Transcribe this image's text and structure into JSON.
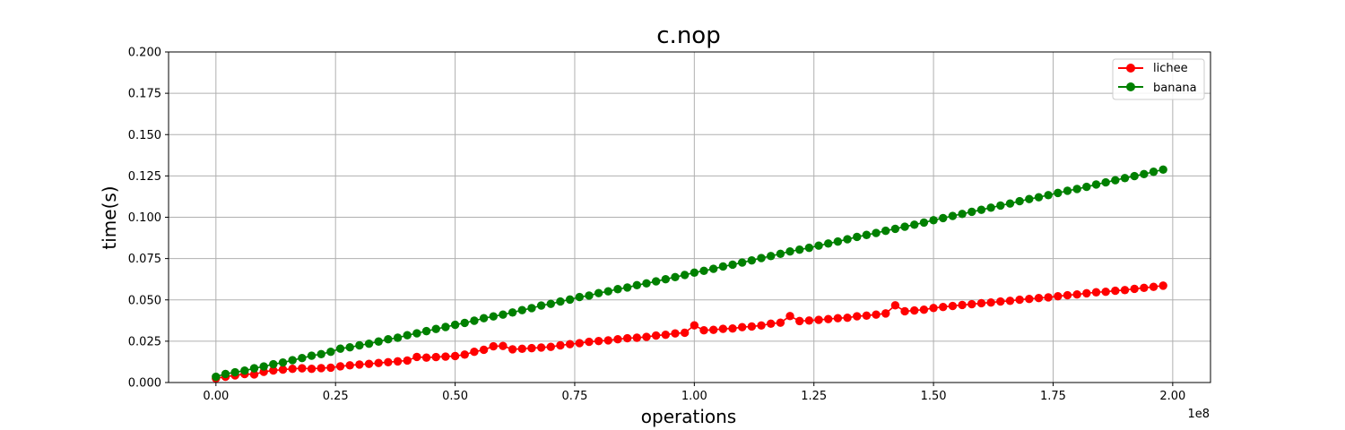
{
  "chart_data": {
    "type": "line",
    "title": "c.nop",
    "xlabel": "operations",
    "ylabel": "time(s)",
    "x_offset_label": "1e8",
    "xlim": [
      -0.099,
      2.079
    ],
    "ylim": [
      0,
      0.2
    ],
    "x_ticks": [
      0,
      0.25,
      0.5,
      0.75,
      1.0,
      1.25,
      1.5,
      1.75,
      2.0
    ],
    "x_tick_labels": [
      "0.00",
      "0.25",
      "0.50",
      "0.75",
      "1.00",
      "1.25",
      "1.50",
      "1.75",
      "2.00"
    ],
    "y_ticks": [
      0,
      0.025,
      0.05,
      0.075,
      0.1,
      0.125,
      0.15,
      0.175,
      0.2
    ],
    "y_tick_labels": [
      "0.000",
      "0.025",
      "0.050",
      "0.075",
      "0.100",
      "0.125",
      "0.150",
      "0.175",
      "0.200"
    ],
    "grid": true,
    "legend_position": "top-right",
    "x": [
      0.0,
      0.02,
      0.04,
      0.06,
      0.08,
      0.1,
      0.12,
      0.14,
      0.16,
      0.18,
      0.2,
      0.22,
      0.24,
      0.26,
      0.28,
      0.3,
      0.32,
      0.34,
      0.36,
      0.38,
      0.4,
      0.42,
      0.44,
      0.46,
      0.48,
      0.5,
      0.52,
      0.54,
      0.56,
      0.58,
      0.6,
      0.62,
      0.64,
      0.66,
      0.68,
      0.7,
      0.72,
      0.74,
      0.76,
      0.78,
      0.8,
      0.82,
      0.84,
      0.86,
      0.88,
      0.9,
      0.92,
      0.94,
      0.96,
      0.98,
      1.0,
      1.02,
      1.04,
      1.06,
      1.08,
      1.1,
      1.12,
      1.14,
      1.16,
      1.18,
      1.2,
      1.22,
      1.24,
      1.26,
      1.28,
      1.3,
      1.32,
      1.34,
      1.36,
      1.38,
      1.4,
      1.42,
      1.44,
      1.46,
      1.48,
      1.5,
      1.52,
      1.54,
      1.56,
      1.58,
      1.6,
      1.62,
      1.64,
      1.66,
      1.68,
      1.7,
      1.72,
      1.74,
      1.76,
      1.78,
      1.8,
      1.82,
      1.84,
      1.86,
      1.88,
      1.9,
      1.92,
      1.94,
      1.96,
      1.98
    ],
    "series": [
      {
        "name": "lichee",
        "color": "#ff0000",
        "values": [
          0.0025,
          0.0035,
          0.0043,
          0.0051,
          0.0049,
          0.0065,
          0.0073,
          0.0078,
          0.0083,
          0.0086,
          0.0083,
          0.0087,
          0.009,
          0.0098,
          0.0104,
          0.0109,
          0.0113,
          0.0118,
          0.0123,
          0.0128,
          0.0133,
          0.0155,
          0.0151,
          0.0154,
          0.0157,
          0.016,
          0.0169,
          0.0186,
          0.0198,
          0.0219,
          0.0221,
          0.0201,
          0.0204,
          0.0208,
          0.0212,
          0.0216,
          0.0225,
          0.0232,
          0.0238,
          0.0246,
          0.0251,
          0.0255,
          0.0262,
          0.0268,
          0.0271,
          0.0276,
          0.0284,
          0.0289,
          0.0297,
          0.0301,
          0.0346,
          0.0316,
          0.0319,
          0.0325,
          0.0327,
          0.0335,
          0.0339,
          0.0345,
          0.0356,
          0.0362,
          0.0402,
          0.0372,
          0.0375,
          0.0379,
          0.0384,
          0.0389,
          0.0392,
          0.0401,
          0.0405,
          0.0411,
          0.0418,
          0.0467,
          0.0431,
          0.0436,
          0.0441,
          0.0451,
          0.0457,
          0.0463,
          0.0469,
          0.0474,
          0.048,
          0.0484,
          0.049,
          0.0494,
          0.0501,
          0.0506,
          0.0511,
          0.0515,
          0.0522,
          0.0528,
          0.0533,
          0.054,
          0.0546,
          0.0549,
          0.0555,
          0.0559,
          0.0567,
          0.0573,
          0.0579,
          0.0586
        ]
      },
      {
        "name": "banana",
        "color": "#008000",
        "values": [
          0.0035,
          0.0052,
          0.0062,
          0.0072,
          0.0086,
          0.0097,
          0.0111,
          0.0121,
          0.0135,
          0.0148,
          0.0162,
          0.0172,
          0.0186,
          0.0205,
          0.0213,
          0.0225,
          0.0235,
          0.0248,
          0.0262,
          0.0271,
          0.0286,
          0.0298,
          0.0311,
          0.0324,
          0.0336,
          0.0349,
          0.0361,
          0.0374,
          0.0389,
          0.04,
          0.0411,
          0.0424,
          0.0438,
          0.045,
          0.0466,
          0.0476,
          0.049,
          0.0502,
          0.0517,
          0.0526,
          0.0541,
          0.0552,
          0.0565,
          0.0575,
          0.0589,
          0.06,
          0.0612,
          0.0625,
          0.0638,
          0.0651,
          0.0665,
          0.0676,
          0.0688,
          0.0702,
          0.0713,
          0.0726,
          0.0739,
          0.0753,
          0.0765,
          0.0779,
          0.0793,
          0.0804,
          0.0815,
          0.0828,
          0.0841,
          0.0853,
          0.0867,
          0.0881,
          0.0893,
          0.0905,
          0.0918,
          0.093,
          0.0943,
          0.0955,
          0.0968,
          0.0982,
          0.0995,
          0.1008,
          0.102,
          0.1033,
          0.1045,
          0.1058,
          0.1071,
          0.1083,
          0.1097,
          0.111,
          0.1121,
          0.1134,
          0.1147,
          0.116,
          0.1171,
          0.1184,
          0.1198,
          0.1211,
          0.1224,
          0.1237,
          0.1249,
          0.1261,
          0.1275,
          0.1288
        ]
      }
    ]
  }
}
